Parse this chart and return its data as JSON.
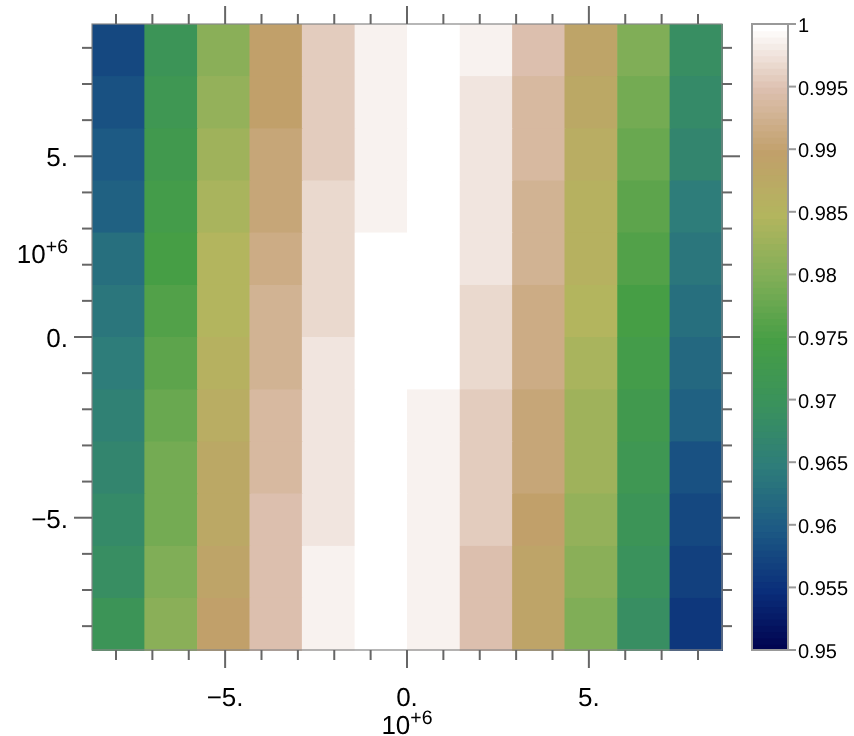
{
  "chart_data": {
    "type": "heatmap",
    "xlabel": "10$^{+6}$",
    "ylabel": "10$^{+6}$",
    "x": [
      -7.94,
      -6.5,
      -5.05,
      -3.61,
      -2.17,
      -0.72,
      0.72,
      2.17,
      3.61,
      5.05,
      6.5,
      7.94
    ],
    "y": [
      7.94,
      6.5,
      5.05,
      3.61,
      2.17,
      0.72,
      -0.72,
      -2.17,
      -3.61,
      -5.05,
      -6.5,
      -7.94
    ],
    "xlim": [
      -8.66,
      8.66
    ],
    "ylim": [
      -8.66,
      8.66
    ],
    "xticks": [
      {
        "value": -8,
        "label": null
      },
      {
        "value": -7,
        "label": null
      },
      {
        "value": -6,
        "label": null
      },
      {
        "value": -5,
        "label": "−5."
      },
      {
        "value": -4,
        "label": null
      },
      {
        "value": -3,
        "label": null
      },
      {
        "value": -2,
        "label": null
      },
      {
        "value": -1,
        "label": null
      },
      {
        "value": 0,
        "label": "0."
      },
      {
        "value": 1,
        "label": null
      },
      {
        "value": 2,
        "label": null
      },
      {
        "value": 3,
        "label": null
      },
      {
        "value": 4,
        "label": null
      },
      {
        "value": 5,
        "label": "5."
      },
      {
        "value": 6,
        "label": null
      },
      {
        "value": 7,
        "label": null
      },
      {
        "value": 8,
        "label": null
      }
    ],
    "yticks": [
      {
        "value": -8,
        "label": null
      },
      {
        "value": -7,
        "label": null
      },
      {
        "value": -6,
        "label": null
      },
      {
        "value": -5,
        "label": "−5."
      },
      {
        "value": -4,
        "label": null
      },
      {
        "value": -3,
        "label": null
      },
      {
        "value": -2,
        "label": null
      },
      {
        "value": -1,
        "label": null
      },
      {
        "value": 0,
        "label": "0."
      },
      {
        "value": 1,
        "label": null
      },
      {
        "value": 2,
        "label": null
      },
      {
        "value": 3,
        "label": null
      },
      {
        "value": 4,
        "label": null
      },
      {
        "value": 5,
        "label": "5."
      },
      {
        "value": 6,
        "label": null
      },
      {
        "value": 7,
        "label": null
      },
      {
        "value": 8,
        "label": null
      }
    ],
    "clim": [
      0.95,
      1
    ],
    "cticks": [
      0.95,
      0.955,
      0.96,
      0.965,
      0.97,
      0.975,
      0.98,
      0.985,
      0.99,
      0.995,
      1
    ],
    "cells": [
      [
        0.958,
        0.971,
        0.981,
        0.99,
        0.996,
        0.999,
        1.0,
        0.999,
        0.995,
        0.989,
        0.98,
        0.969
      ],
      [
        0.959,
        0.972,
        0.982,
        0.99,
        0.996,
        0.999,
        1.0,
        0.998,
        0.994,
        0.988,
        0.979,
        0.968
      ],
      [
        0.96,
        0.973,
        0.983,
        0.991,
        0.996,
        0.999,
        1.0,
        0.998,
        0.994,
        0.987,
        0.978,
        0.967
      ],
      [
        0.961,
        0.974,
        0.984,
        0.991,
        0.997,
        0.999,
        1.0,
        0.998,
        0.993,
        0.986,
        0.977,
        0.965
      ],
      [
        0.963,
        0.975,
        0.985,
        0.992,
        0.997,
        1.0,
        1.0,
        0.998,
        0.993,
        0.986,
        0.976,
        0.964
      ],
      [
        0.964,
        0.976,
        0.985,
        0.993,
        0.997,
        1.0,
        1.0,
        0.997,
        0.992,
        0.985,
        0.975,
        0.963
      ],
      [
        0.965,
        0.977,
        0.986,
        0.993,
        0.998,
        1.0,
        1.0,
        0.997,
        0.992,
        0.984,
        0.974,
        0.962
      ],
      [
        0.966,
        0.978,
        0.987,
        0.994,
        0.998,
        1.0,
        0.999,
        0.996,
        0.991,
        0.983,
        0.973,
        0.961
      ],
      [
        0.967,
        0.979,
        0.988,
        0.994,
        0.998,
        1.0,
        0.999,
        0.996,
        0.991,
        0.983,
        0.972,
        0.959
      ],
      [
        0.968,
        0.979,
        0.988,
        0.995,
        0.998,
        1.0,
        0.999,
        0.996,
        0.99,
        0.982,
        0.971,
        0.958
      ],
      [
        0.969,
        0.98,
        0.989,
        0.995,
        0.999,
        1.0,
        0.999,
        0.995,
        0.989,
        0.981,
        0.97,
        0.957
      ],
      [
        0.971,
        0.981,
        0.99,
        0.995,
        0.999,
        1.0,
        0.999,
        0.995,
        0.989,
        0.98,
        0.969,
        0.956
      ]
    ]
  }
}
